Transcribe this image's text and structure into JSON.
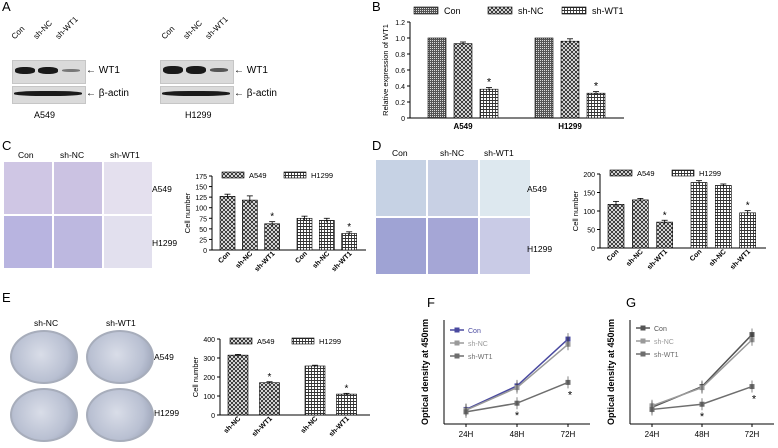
{
  "panels": {
    "A": {
      "letter": "A",
      "blots": [
        {
          "lanes": [
            "Con",
            "sh-NC",
            "sh-WT1"
          ],
          "band_labels": [
            "WT1",
            "β-actin"
          ],
          "cell_line": "A549",
          "wt1_intensity": [
            1.0,
            0.95,
            0.35
          ]
        },
        {
          "lanes": [
            "Con",
            "sh-NC",
            "sh-WT1"
          ],
          "band_labels": [
            "WT1",
            "β-actin"
          ],
          "cell_line": "H1299",
          "wt1_intensity": [
            1.0,
            0.95,
            0.4
          ]
        }
      ]
    },
    "C": {
      "letter": "C",
      "columns": [
        "Con",
        "sh-NC",
        "sh-WT1"
      ],
      "rows": [
        "A549",
        "H1299"
      ]
    },
    "D": {
      "letter": "D",
      "columns": [
        "Con",
        "sh-NC",
        "sh-WT1"
      ],
      "rows": [
        "A549",
        "H1299"
      ]
    },
    "E": {
      "letter": "E",
      "columns": [
        "sh-NC",
        "sh-WT1"
      ],
      "rows": [
        "A549",
        "H1299"
      ]
    },
    "B": {
      "letter": "B"
    },
    "F": {
      "letter": "F"
    },
    "G": {
      "letter": "G"
    }
  },
  "chart_data": [
    {
      "id": "B",
      "type": "bar",
      "categories": [
        "A549",
        "H1299"
      ],
      "series": [
        {
          "name": "Con",
          "values": [
            1.0,
            1.0
          ],
          "errors": [
            0.0,
            0.0
          ]
        },
        {
          "name": "sh-NC",
          "values": [
            0.93,
            0.96
          ],
          "errors": [
            0.02,
            0.03
          ]
        },
        {
          "name": "sh-WT1",
          "values": [
            0.36,
            0.31
          ],
          "errors": [
            0.02,
            0.02
          ]
        }
      ],
      "significance": [
        "",
        "",
        "*"
      ],
      "ylabel": "Relative expression of WT1",
      "ylim": [
        0,
        1.2
      ],
      "yticks": [
        "0",
        "0.2",
        "0.4",
        "0.6",
        "0.8",
        "1",
        "1.2"
      ],
      "tick_labels": [
        "0",
        "0.2",
        "0.4",
        "0.6",
        "0.8",
        "1.0",
        "1.2"
      ]
    },
    {
      "id": "C",
      "type": "bar",
      "legend": [
        "A549",
        "H1299"
      ],
      "categories": [
        "Con",
        "sh-NC",
        "sh-WT1",
        "Con",
        "sh-NC",
        "sh-WT1"
      ],
      "values": [
        127,
        118,
        62,
        75,
        70,
        39
      ],
      "errors": [
        5,
        10,
        5,
        5,
        5,
        4
      ],
      "group_of": [
        0,
        0,
        0,
        1,
        1,
        1
      ],
      "significance": [
        "",
        "",
        "*",
        "",
        "",
        "*"
      ],
      "ylabel": "Cell number",
      "ylim": [
        0,
        175
      ],
      "yticks": [
        "0",
        "25",
        "50",
        "75",
        "100",
        "125",
        "150",
        "175"
      ]
    },
    {
      "id": "D",
      "type": "bar",
      "legend": [
        "A549",
        "H1299"
      ],
      "categories": [
        "Con",
        "sh-NC",
        "sh-WT1",
        "Con",
        "sh-NC",
        "sh-WT1"
      ],
      "values": [
        118,
        130,
        70,
        177,
        169,
        95
      ],
      "errors": [
        8,
        4,
        5,
        5,
        4,
        6
      ],
      "group_of": [
        0,
        0,
        0,
        1,
        1,
        1
      ],
      "significance": [
        "",
        "",
        "*",
        "",
        "",
        "*"
      ],
      "ylabel": "Cell number",
      "ylim": [
        0,
        200
      ],
      "yticks": [
        "0",
        "50",
        "100",
        "150",
        "200"
      ]
    },
    {
      "id": "E",
      "type": "bar",
      "legend": [
        "A549",
        "H1299"
      ],
      "categories": [
        "sh-NC",
        "sh-WT1",
        "sh-NC",
        "sh-WT1"
      ],
      "values": [
        315,
        170,
        258,
        110
      ],
      "errors": [
        4,
        5,
        4,
        4
      ],
      "group_of": [
        0,
        0,
        1,
        1
      ],
      "significance": [
        "",
        "*",
        "",
        "*"
      ],
      "ylabel": "Cell number",
      "ylim": [
        0,
        400
      ],
      "yticks": [
        "0",
        "100",
        "200",
        "300",
        "400"
      ]
    },
    {
      "id": "F",
      "type": "line",
      "x": [
        "24H",
        "48H",
        "72H"
      ],
      "series": [
        {
          "name": "Con",
          "values": [
            0.42,
            1.1,
            2.45
          ],
          "color": "#4a4aa0"
        },
        {
          "name": "sh-NC",
          "values": [
            0.4,
            1.05,
            2.3
          ],
          "color": "#9a9a9a"
        },
        {
          "name": "sh-WT1",
          "values": [
            0.35,
            0.6,
            1.2
          ],
          "color": "#6e6e6e"
        }
      ],
      "significance": [
        "",
        "*",
        "*"
      ],
      "ylabel": "Optical density at 450nm",
      "ylim": [
        0,
        3
      ]
    },
    {
      "id": "G",
      "type": "line",
      "x": [
        "24H",
        "48H",
        "72H"
      ],
      "series": [
        {
          "name": "Con",
          "values": [
            0.32,
            0.72,
            1.72
          ],
          "color": "#555555"
        },
        {
          "name": "sh-NC",
          "values": [
            0.35,
            0.7,
            1.62
          ],
          "color": "#9a9a9a"
        },
        {
          "name": "sh-WT1",
          "values": [
            0.28,
            0.38,
            0.72
          ],
          "color": "#6e6e6e"
        }
      ],
      "significance": [
        "",
        "*",
        "*"
      ],
      "ylabel": "Optical density at 450nm",
      "ylim": [
        0,
        2
      ]
    }
  ]
}
